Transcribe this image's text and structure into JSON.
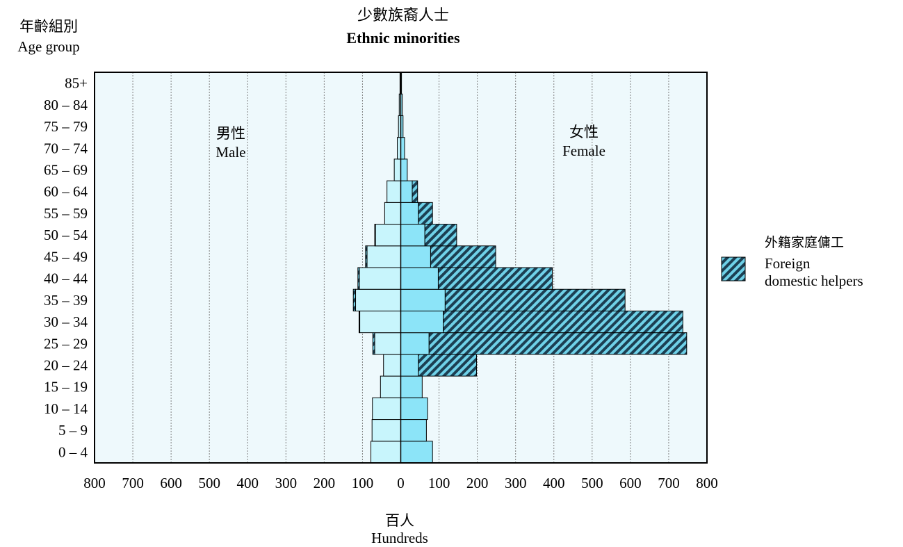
{
  "title": {
    "zh": "少數族裔人士",
    "en": "Ethnic minorities"
  },
  "y_axis_title": {
    "zh": "年齡組別",
    "en": "Age group"
  },
  "x_axis_title": {
    "zh": "百人",
    "en": "Hundreds"
  },
  "male_label": {
    "zh": "男性",
    "en": "Male"
  },
  "female_label": {
    "zh": "女性",
    "en": "Female"
  },
  "legend": {
    "zh": "外籍家庭傭工",
    "en_line1": "Foreign",
    "en_line2": "domestic helpers"
  },
  "colors": {
    "plot_background": "#eef9fc",
    "male_bar": "#c8f5fc",
    "female_bar": "#8ce4f8",
    "helper_hatch_dark": "#1c3f52",
    "helper_hatch_light": "#6fd1e8",
    "grid": "#808080"
  },
  "chart_data": {
    "type": "bar",
    "orientation": "horizontal-population-pyramid",
    "unit": "Hundreds",
    "x_range": [
      -800,
      800
    ],
    "x_ticks": [
      "800",
      "700",
      "600",
      "500",
      "400",
      "300",
      "200",
      "100",
      "0",
      "100",
      "200",
      "300",
      "400",
      "500",
      "600",
      "700",
      "800"
    ],
    "grid": "vertical",
    "legend_position": "right",
    "categories": [
      "0 – 4",
      "5 – 9",
      "10 – 14",
      "15 – 19",
      "20 – 24",
      "25 – 29",
      "30 – 34",
      "35 – 39",
      "40 – 44",
      "45 – 49",
      "50 – 54",
      "55 – 59",
      "60 – 64",
      "65 – 69",
      "70 – 74",
      "75 – 79",
      "80 – 84",
      "85+"
    ],
    "series": [
      {
        "key": "male",
        "values": [
          78,
          75,
          74,
          53,
          45,
          68,
          107,
          118,
          108,
          88,
          66,
          42,
          36,
          17,
          9,
          6,
          4,
          2
        ]
      },
      {
        "key": "male_helpers",
        "values": [
          0,
          0,
          0,
          0,
          0,
          5,
          2,
          6,
          4,
          4,
          2,
          0,
          0,
          0,
          0,
          0,
          0,
          0
        ]
      },
      {
        "key": "female",
        "values": [
          83,
          67,
          70,
          56,
          46,
          74,
          111,
          116,
          98,
          78,
          63,
          46,
          30,
          17,
          10,
          6,
          4,
          2
        ]
      },
      {
        "key": "female_helpers",
        "name": "Foreign domestic helpers",
        "values": [
          0,
          0,
          0,
          0,
          152,
          673,
          626,
          470,
          298,
          170,
          83,
          37,
          14,
          0,
          0,
          0,
          0,
          0
        ]
      }
    ]
  }
}
